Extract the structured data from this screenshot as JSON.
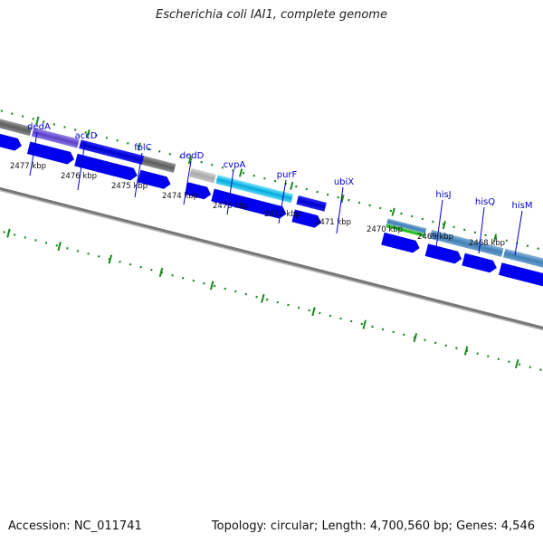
{
  "title": "Escherichia coli IAI1, complete genome",
  "footer": {
    "accession": "Accession: NC_011741",
    "summary": "Topology: circular; Length: 4,700,560 bp; Genes: 4,546"
  },
  "colors": {
    "forward_cds": "#0000ee",
    "gene_label": "#0000cc",
    "tick": "#1a8a1a",
    "backbone": "#777777"
  },
  "kbp_labels": [
    "2477 kbp",
    "2476 kbp",
    "2475 kbp",
    "2474 kbp",
    "2473 kbp",
    "2472 kbp",
    "2471 kbp",
    "2470 kbp",
    "2469 kbp",
    "2468 kbp"
  ],
  "genes": [
    "dedA",
    "accD",
    "folC",
    "dedD",
    "cvpA",
    "purF",
    "ubiX",
    "hisJ",
    "hisQ",
    "hisM"
  ]
}
